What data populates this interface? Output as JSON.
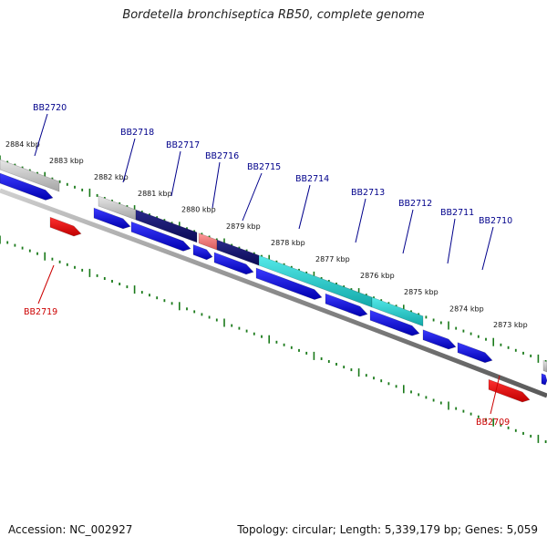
{
  "title": "Bordetella bronchiseptica RB50, complete genome",
  "footer": {
    "accession": "Accession: NC_002927",
    "topology": "Topology: circular; Length: 5,339,179 bp; Genes: 5,059"
  },
  "colors": {
    "gene_forward": "#1010e0",
    "gene_reverse": "#ee1010",
    "label_forward": "#00008b",
    "label_reverse": "#cc0000",
    "tick": "#1a7a1a",
    "backbone": "#888888",
    "cog_lightgray": "#b8b8b8",
    "cog_navy": "#111177",
    "cog_pink": "#ee7777",
    "cog_teal": "#22cccc"
  },
  "scale": {
    "labels": [
      "2884 kbp",
      "2883 kbp",
      "2882 kbp",
      "2881 kbp",
      "2880 kbp",
      "2879 kbp",
      "2878 kbp",
      "2877 kbp",
      "2876 kbp",
      "2875 kbp",
      "2874 kbp",
      "2873 kbp"
    ]
  },
  "genes": [
    {
      "name": "BB2720",
      "strand": "forward"
    },
    {
      "name": "BB2719",
      "strand": "reverse"
    },
    {
      "name": "BB2718",
      "strand": "forward"
    },
    {
      "name": "BB2717",
      "strand": "forward"
    },
    {
      "name": "BB2716",
      "strand": "forward"
    },
    {
      "name": "BB2715",
      "strand": "forward"
    },
    {
      "name": "BB2714",
      "strand": "forward"
    },
    {
      "name": "BB2713",
      "strand": "forward"
    },
    {
      "name": "BB2712",
      "strand": "forward"
    },
    {
      "name": "BB2711",
      "strand": "forward"
    },
    {
      "name": "BB2710",
      "strand": "forward"
    },
    {
      "name": "BB2709",
      "strand": "reverse"
    }
  ]
}
